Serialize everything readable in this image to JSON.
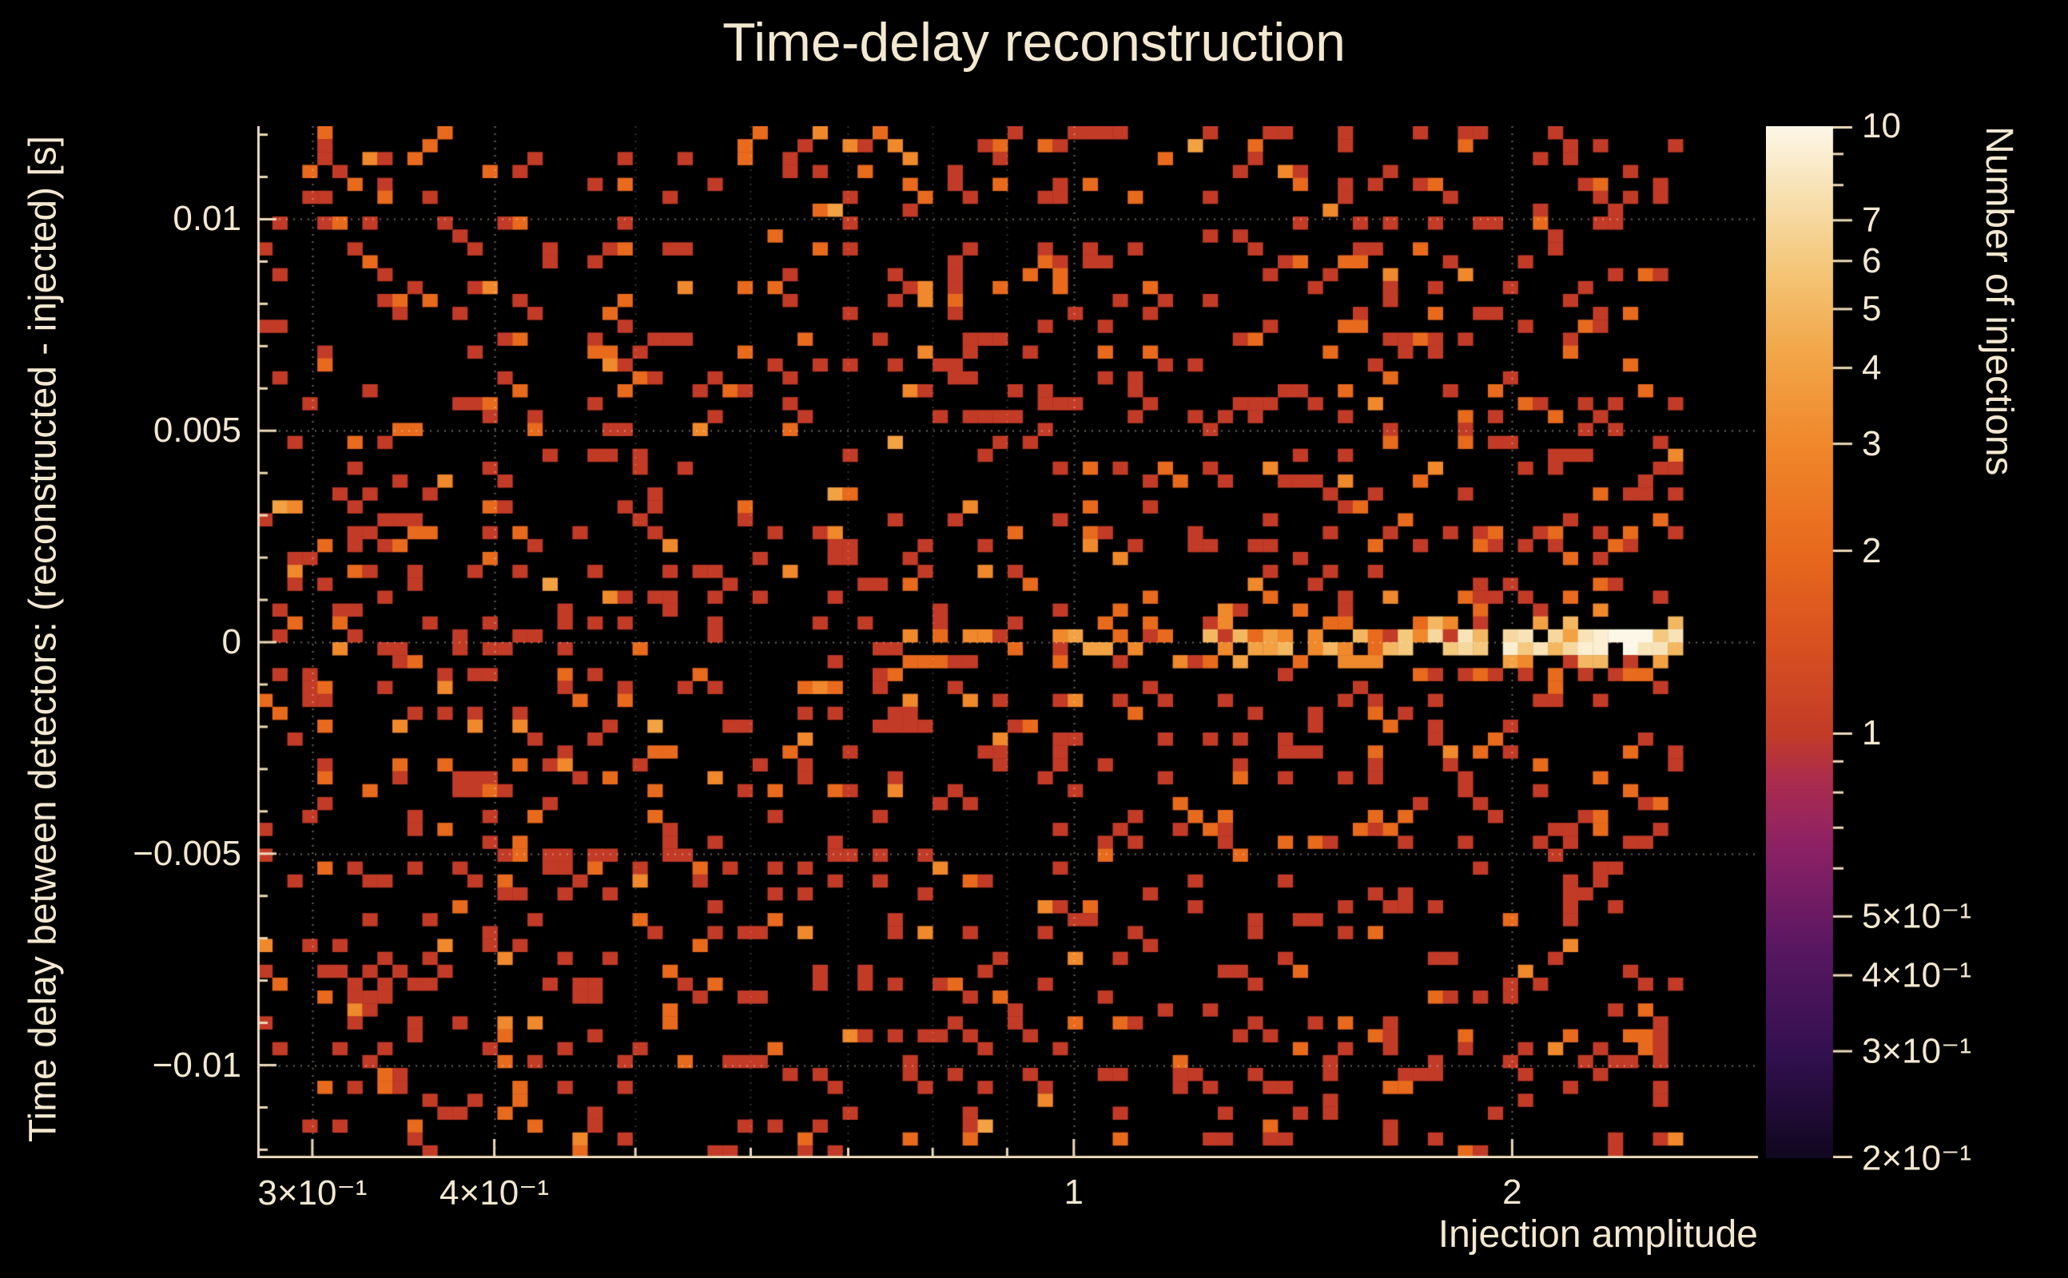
{
  "chart_data": {
    "type": "heatmap",
    "title": "Time-delay reconstruction",
    "xlabel": "Injection amplitude",
    "ylabel": "Time delay between detectors: (reconstructed - injected) [s]",
    "x_scale": "log",
    "x_range": [
      0.275,
      2.95
    ],
    "y_range": [
      -0.0122,
      0.0122
    ],
    "x_ticks": [
      {
        "value": 0.3,
        "label": "3×10⁻¹"
      },
      {
        "value": 0.4,
        "label": "4×10⁻¹"
      },
      {
        "value": 1,
        "label": "1"
      },
      {
        "value": 2,
        "label": "2"
      }
    ],
    "x_minor_ticks": [
      0.5,
      0.6,
      0.7,
      0.8,
      0.9
    ],
    "y_ticks": [
      {
        "value": 0.01,
        "label": "0.01"
      },
      {
        "value": 0.005,
        "label": "0.005"
      },
      {
        "value": 0,
        "label": "0"
      },
      {
        "value": -0.005,
        "label": "−0.005"
      },
      {
        "value": -0.01,
        "label": "−0.01"
      }
    ],
    "grid_y": [
      -0.01,
      -0.005,
      0,
      0.005,
      0.01
    ],
    "background_color": "#000000",
    "text_color": "#f3e8d0",
    "axis_color": "#ead9b8",
    "colorbar": {
      "label": "Number of injections",
      "scale": "log",
      "range": [
        0.2,
        10
      ],
      "ticks": [
        {
          "value": 10,
          "label": "10"
        },
        {
          "value": 7,
          "label": "7"
        },
        {
          "value": 6,
          "label": "6"
        },
        {
          "value": 5,
          "label": "5"
        },
        {
          "value": 4,
          "label": "4"
        },
        {
          "value": 3,
          "label": "3"
        },
        {
          "value": 2,
          "label": "2"
        },
        {
          "value": 1,
          "label": "1"
        },
        {
          "value": 0.5,
          "label": "5×10⁻¹"
        },
        {
          "value": 0.4,
          "label": "4×10⁻¹"
        },
        {
          "value": 0.3,
          "label": "3×10⁻¹"
        },
        {
          "value": 0.2,
          "label": "2×10⁻¹"
        }
      ],
      "minor_ticks": [
        9,
        8,
        0.9,
        0.8,
        0.7,
        0.6
      ],
      "colormap_stops": [
        [
          0.0,
          "#10071f"
        ],
        [
          0.1,
          "#32104f"
        ],
        [
          0.2,
          "#571761"
        ],
        [
          0.3,
          "#8c2166"
        ],
        [
          0.37,
          "#ad2d4c"
        ],
        [
          0.41,
          "#c23b27"
        ],
        [
          0.5,
          "#d85120"
        ],
        [
          0.59,
          "#e86a1d"
        ],
        [
          0.69,
          "#f0872b"
        ],
        [
          0.78,
          "#f2a648"
        ],
        [
          0.86,
          "#f4c677"
        ],
        [
          0.93,
          "#f7dfad"
        ],
        [
          1.0,
          "#fdf7e8"
        ]
      ]
    },
    "bins": {
      "nx": 100,
      "ny": 80
    },
    "distribution": {
      "description": "Sparse random background of mostly single-count bins (brick red) with some 2-3 count bins (orange) spread over the full amplitude and time-delay range; a concentrated bright band at time delay ≈ 0 appears for injection amplitudes above ≈ 0.9, growing in occupancy and count (orange → yellow → white, up to 10 injections) toward amplitude ≈ 2.4; no entries beyond amplitude ≈ 2.62.",
      "seed": 42,
      "x_data_max": 2.62,
      "background_fill_fraction": 0.155,
      "background_count_weights": [
        [
          1,
          0.74
        ],
        [
          2,
          0.19
        ],
        [
          3,
          0.06
        ],
        [
          4,
          0.01
        ]
      ],
      "band": {
        "y_center": 0,
        "y_sigma_bins": 1.3,
        "x_start_amplitude": 0.5,
        "full_strength_amplitude": 2.4,
        "max_count": 10
      }
    }
  }
}
